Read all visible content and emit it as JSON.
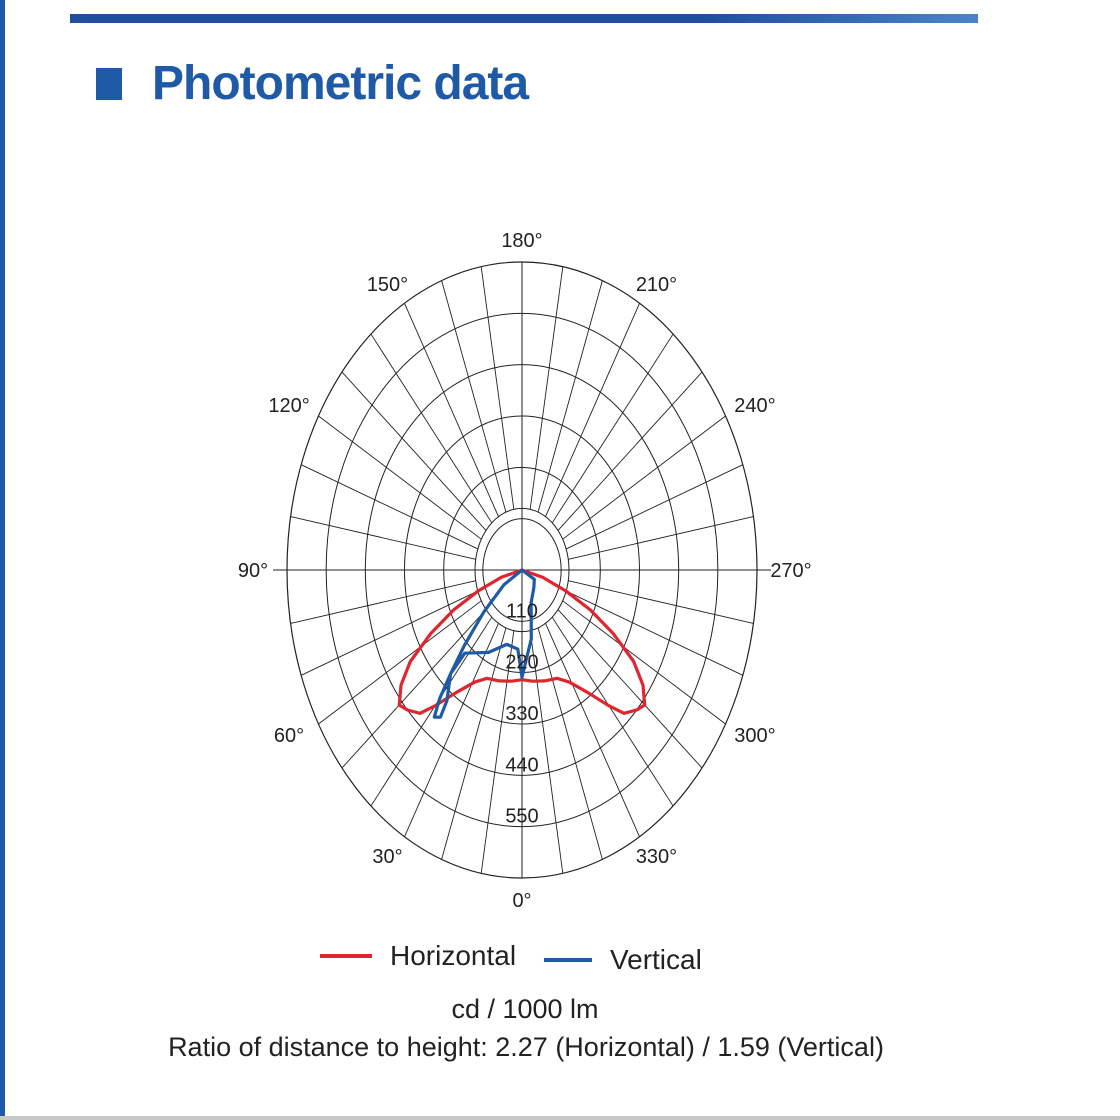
{
  "page": {
    "title": "Photometric data",
    "accent_color": "#1f5aa6"
  },
  "chart_data": {
    "type": "polar",
    "title": "Photometric data",
    "unit": "cd / 1000 lm",
    "angle_labels": [
      "0°",
      "30°",
      "60°",
      "90°",
      "120°",
      "150°",
      "180°",
      "210°",
      "240°",
      "270°",
      "300°",
      "330°"
    ],
    "angle_values": [
      0,
      30,
      60,
      90,
      120,
      150,
      180,
      210,
      240,
      270,
      300,
      330
    ],
    "radial_ticks": [
      110,
      220,
      330,
      440,
      550
    ],
    "radial_tick_labels": [
      "110",
      "220",
      "330",
      "440",
      "550"
    ],
    "r_max": 660,
    "series": [
      {
        "name": "Horizontal",
        "color": "#e0252e",
        "points": [
          {
            "angle": 0,
            "value": 235
          },
          {
            "angle": 7,
            "value": 240
          },
          {
            "angle": 15,
            "value": 246
          },
          {
            "angle": 23,
            "value": 252
          },
          {
            "angle": 29,
            "value": 275
          },
          {
            "angle": 35,
            "value": 320
          },
          {
            "angle": 40,
            "value": 380
          },
          {
            "angle": 43,
            "value": 420
          },
          {
            "angle": 47,
            "value": 440
          },
          {
            "angle": 50,
            "value": 450
          },
          {
            "angle": 54,
            "value": 420
          },
          {
            "angle": 58,
            "value": 370
          },
          {
            "angle": 62,
            "value": 290
          },
          {
            "angle": 66,
            "value": 210
          },
          {
            "angle": 70,
            "value": 130
          },
          {
            "angle": 75,
            "value": 60
          },
          {
            "angle": 90,
            "value": 0
          },
          {
            "angle": 285,
            "value": 60
          },
          {
            "angle": 290,
            "value": 130
          },
          {
            "angle": 294,
            "value": 210
          },
          {
            "angle": 298,
            "value": 290
          },
          {
            "angle": 302,
            "value": 370
          },
          {
            "angle": 306,
            "value": 420
          },
          {
            "angle": 310,
            "value": 450
          },
          {
            "angle": 313,
            "value": 440
          },
          {
            "angle": 317,
            "value": 420
          },
          {
            "angle": 320,
            "value": 380
          },
          {
            "angle": 325,
            "value": 320
          },
          {
            "angle": 331,
            "value": 275
          },
          {
            "angle": 337,
            "value": 252
          },
          {
            "angle": 345,
            "value": 246
          },
          {
            "angle": 353,
            "value": 240
          },
          {
            "angle": 360,
            "value": 235
          }
        ]
      },
      {
        "name": "Vertical",
        "color": "#1f5aa6",
        "points": [
          {
            "angle": 90,
            "value": 0
          },
          {
            "angle": 58,
            "value": 60
          },
          {
            "angle": 50,
            "value": 140
          },
          {
            "angle": 45,
            "value": 230
          },
          {
            "angle": 42,
            "value": 300
          },
          {
            "angle": 40,
            "value": 360
          },
          {
            "angle": 38,
            "value": 400
          },
          {
            "angle": 36,
            "value": 390
          },
          {
            "angle": 37,
            "value": 350
          },
          {
            "angle": 42,
            "value": 300
          },
          {
            "angle": 42,
            "value": 240
          },
          {
            "angle": 28,
            "value": 200
          },
          {
            "angle": 15,
            "value": 165
          },
          {
            "angle": 4,
            "value": 170
          },
          {
            "angle": 0,
            "value": 230
          },
          {
            "angle": 350,
            "value": 150
          },
          {
            "angle": 340,
            "value": 75
          },
          {
            "angle": 318,
            "value": 50
          },
          {
            "angle": 300,
            "value": 40
          },
          {
            "angle": 270,
            "value": 0
          }
        ]
      }
    ],
    "legend": [
      "Horizontal",
      "Vertical"
    ],
    "notes": [
      "cd / 1000 lm",
      "Ratio of distance to height: 2.27 (Horizontal) / 1.59 (Vertical)"
    ]
  },
  "legend": {
    "horizontal_label": "Horizontal",
    "vertical_label": "Vertical",
    "horizontal_color": "#e0252e",
    "vertical_color": "#1f5aa6"
  },
  "footer": {
    "unit": "cd / 1000 lm",
    "ratio": "Ratio of distance to height: 2.27 (Horizontal) / 1.59 (Vertical)"
  }
}
